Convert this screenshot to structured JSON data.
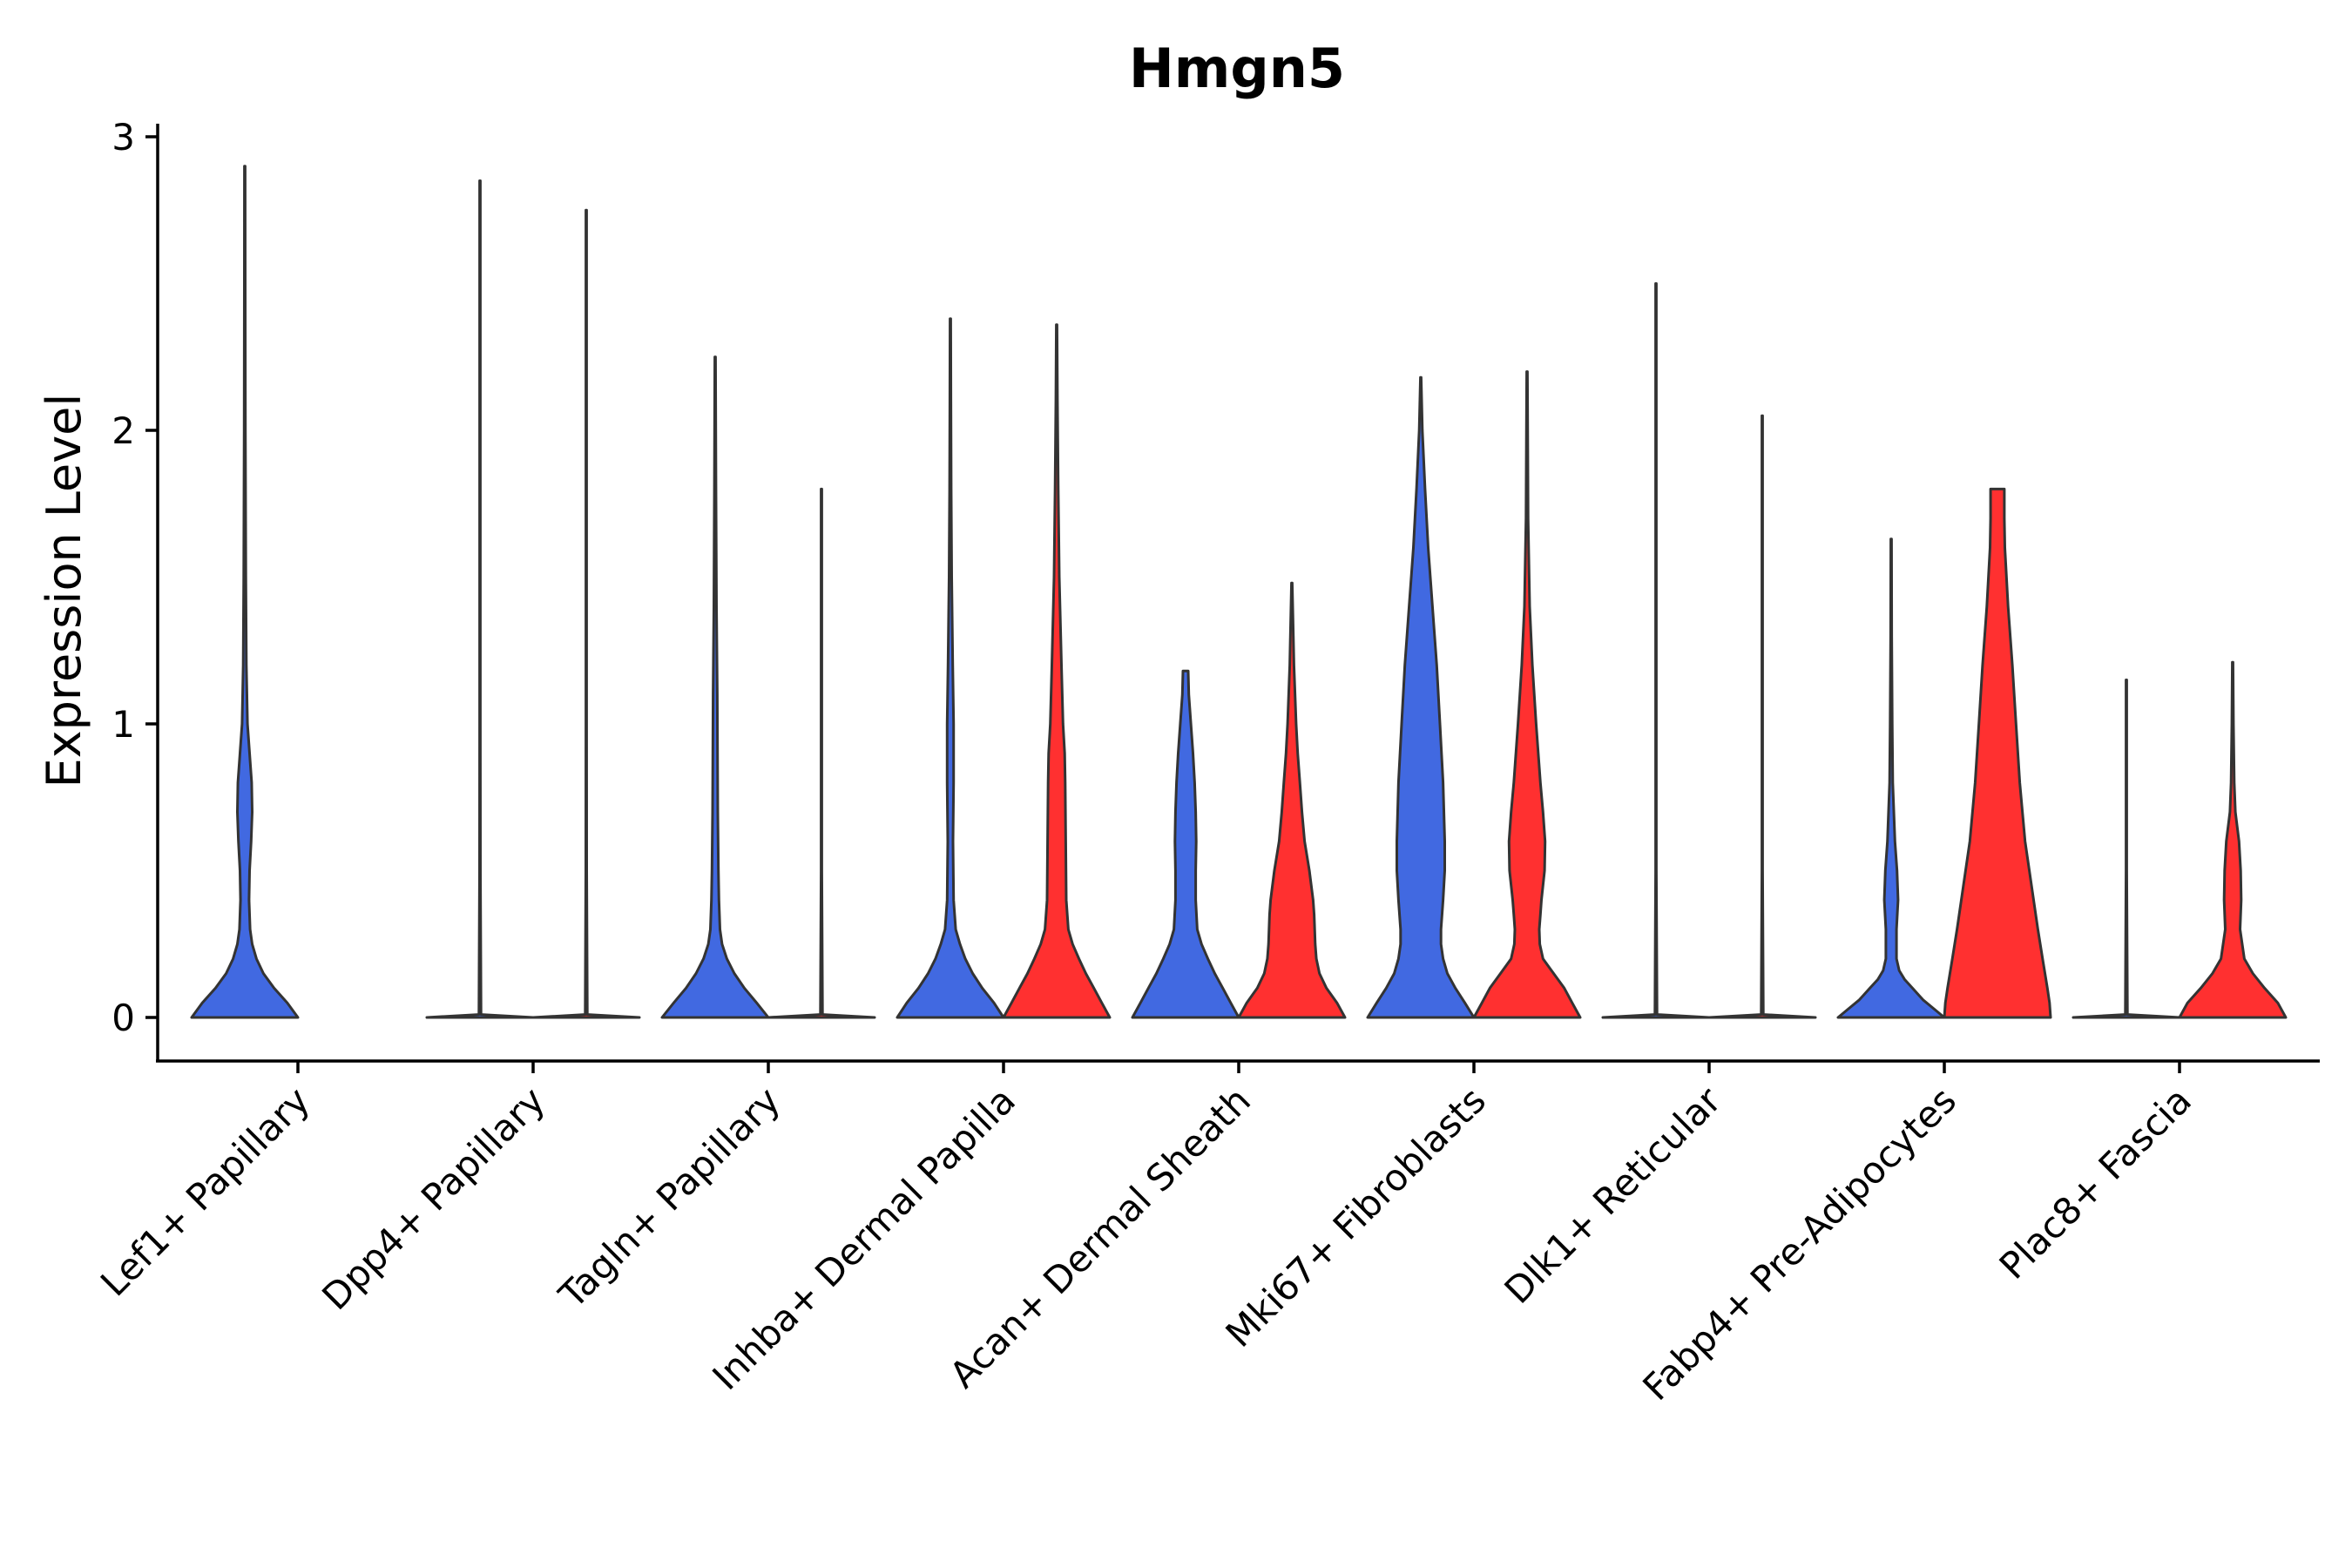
{
  "chart_data": {
    "type": "violin",
    "title": "Hmgn5",
    "xlabel": "",
    "ylabel": "Expression Level",
    "ylim": [
      -0.15,
      3.05
    ],
    "yticks": [
      "0",
      "1",
      "2",
      "3"
    ],
    "categories": [
      "Lef1+ Papillary",
      "Dpp4+ Papillary",
      "Tagln+ Papillary",
      "Inhba+ Dermal Papilla",
      "Acan+ Dermal Sheath",
      "Mki67+ Fibroblasts",
      "Dlk1+ Reticular",
      "Fabp4+ Pre-Adipocytes",
      "Plac8+ Fascia"
    ],
    "group_colors": [
      "#4169E1",
      "#FF3030"
    ],
    "violins": [
      {
        "category": 0,
        "group": 0,
        "max": 2.9,
        "profile": [
          [
            0,
            1.0
          ],
          [
            0.05,
            0.8
          ],
          [
            0.1,
            0.55
          ],
          [
            0.15,
            0.35
          ],
          [
            0.2,
            0.22
          ],
          [
            0.25,
            0.14
          ],
          [
            0.3,
            0.1
          ],
          [
            0.4,
            0.08
          ],
          [
            0.5,
            0.09
          ],
          [
            0.6,
            0.12
          ],
          [
            0.7,
            0.14
          ],
          [
            0.8,
            0.13
          ],
          [
            0.9,
            0.09
          ],
          [
            1.0,
            0.05
          ],
          [
            1.2,
            0.03
          ],
          [
            1.5,
            0.02
          ],
          [
            2.0,
            0.012
          ],
          [
            2.5,
            0.008
          ],
          [
            2.9,
            0.006
          ]
        ]
      },
      {
        "category": 1,
        "group": 0,
        "max": 2.85,
        "profile": [
          [
            0,
            1.0
          ],
          [
            0.01,
            0.02
          ],
          [
            0.5,
            0.008
          ],
          [
            1.0,
            0.007
          ],
          [
            2.0,
            0.006
          ],
          [
            2.85,
            0.006
          ]
        ]
      },
      {
        "category": 1,
        "group": 1,
        "max": 2.75,
        "profile": [
          [
            0,
            1.0
          ],
          [
            0.01,
            0.02
          ],
          [
            0.5,
            0.008
          ],
          [
            1.0,
            0.007
          ],
          [
            2.0,
            0.006
          ],
          [
            2.75,
            0.006
          ]
        ]
      },
      {
        "category": 2,
        "group": 0,
        "max": 2.25,
        "profile": [
          [
            0,
            1.0
          ],
          [
            0.05,
            0.78
          ],
          [
            0.1,
            0.55
          ],
          [
            0.15,
            0.36
          ],
          [
            0.2,
            0.22
          ],
          [
            0.25,
            0.13
          ],
          [
            0.3,
            0.09
          ],
          [
            0.4,
            0.07
          ],
          [
            0.5,
            0.06
          ],
          [
            0.7,
            0.05
          ],
          [
            0.9,
            0.045
          ],
          [
            1.1,
            0.04
          ],
          [
            1.4,
            0.025
          ],
          [
            1.8,
            0.015
          ],
          [
            2.25,
            0.006
          ]
        ]
      },
      {
        "category": 2,
        "group": 1,
        "max": 1.8,
        "profile": [
          [
            0,
            1.0
          ],
          [
            0.01,
            0.02
          ],
          [
            0.5,
            0.007
          ],
          [
            1.0,
            0.006
          ],
          [
            1.8,
            0.006
          ]
        ]
      },
      {
        "category": 3,
        "group": 0,
        "max": 2.38,
        "profile": [
          [
            0,
            1.0
          ],
          [
            0.05,
            0.82
          ],
          [
            0.1,
            0.6
          ],
          [
            0.15,
            0.42
          ],
          [
            0.2,
            0.28
          ],
          [
            0.25,
            0.18
          ],
          [
            0.3,
            0.1
          ],
          [
            0.4,
            0.06
          ],
          [
            0.6,
            0.05
          ],
          [
            0.8,
            0.06
          ],
          [
            1.0,
            0.06
          ],
          [
            1.2,
            0.045
          ],
          [
            1.5,
            0.025
          ],
          [
            1.8,
            0.015
          ],
          [
            2.1,
            0.01
          ],
          [
            2.38,
            0.006
          ]
        ]
      },
      {
        "category": 3,
        "group": 1,
        "max": 2.36,
        "profile": [
          [
            0,
            1.0
          ],
          [
            0.05,
            0.85
          ],
          [
            0.1,
            0.7
          ],
          [
            0.15,
            0.55
          ],
          [
            0.2,
            0.42
          ],
          [
            0.25,
            0.3
          ],
          [
            0.3,
            0.22
          ],
          [
            0.4,
            0.18
          ],
          [
            0.6,
            0.17
          ],
          [
            0.8,
            0.16
          ],
          [
            0.9,
            0.15
          ],
          [
            1.0,
            0.12
          ],
          [
            1.2,
            0.09
          ],
          [
            1.5,
            0.05
          ],
          [
            1.8,
            0.03
          ],
          [
            2.1,
            0.015
          ],
          [
            2.36,
            0.006
          ]
        ]
      },
      {
        "category": 4,
        "group": 0,
        "max": 1.18,
        "profile": [
          [
            0,
            1.0
          ],
          [
            0.05,
            0.85
          ],
          [
            0.1,
            0.7
          ],
          [
            0.15,
            0.55
          ],
          [
            0.2,
            0.42
          ],
          [
            0.25,
            0.3
          ],
          [
            0.3,
            0.22
          ],
          [
            0.4,
            0.19
          ],
          [
            0.5,
            0.19
          ],
          [
            0.6,
            0.2
          ],
          [
            0.7,
            0.19
          ],
          [
            0.8,
            0.17
          ],
          [
            0.9,
            0.14
          ],
          [
            1.0,
            0.1
          ],
          [
            1.1,
            0.06
          ],
          [
            1.18,
            0.05
          ]
        ]
      },
      {
        "category": 4,
        "group": 1,
        "max": 1.48,
        "profile": [
          [
            0,
            1.0
          ],
          [
            0.05,
            0.85
          ],
          [
            0.1,
            0.65
          ],
          [
            0.15,
            0.52
          ],
          [
            0.2,
            0.46
          ],
          [
            0.25,
            0.44
          ],
          [
            0.3,
            0.43
          ],
          [
            0.35,
            0.42
          ],
          [
            0.4,
            0.4
          ],
          [
            0.5,
            0.33
          ],
          [
            0.6,
            0.24
          ],
          [
            0.7,
            0.19
          ],
          [
            0.8,
            0.15
          ],
          [
            0.9,
            0.11
          ],
          [
            1.0,
            0.08
          ],
          [
            1.2,
            0.04
          ],
          [
            1.48,
            0.006
          ]
        ]
      },
      {
        "category": 5,
        "group": 0,
        "max": 2.18,
        "profile": [
          [
            0,
            1.0
          ],
          [
            0.05,
            0.83
          ],
          [
            0.1,
            0.65
          ],
          [
            0.15,
            0.5
          ],
          [
            0.2,
            0.42
          ],
          [
            0.25,
            0.38
          ],
          [
            0.3,
            0.38
          ],
          [
            0.4,
            0.42
          ],
          [
            0.5,
            0.45
          ],
          [
            0.6,
            0.45
          ],
          [
            0.8,
            0.42
          ],
          [
            1.0,
            0.36
          ],
          [
            1.2,
            0.3
          ],
          [
            1.4,
            0.22
          ],
          [
            1.6,
            0.14
          ],
          [
            1.8,
            0.08
          ],
          [
            2.0,
            0.03
          ],
          [
            2.18,
            0.006
          ]
        ]
      },
      {
        "category": 5,
        "group": 1,
        "max": 2.2,
        "profile": [
          [
            0,
            1.0
          ],
          [
            0.05,
            0.85
          ],
          [
            0.1,
            0.7
          ],
          [
            0.15,
            0.5
          ],
          [
            0.2,
            0.3
          ],
          [
            0.25,
            0.24
          ],
          [
            0.3,
            0.23
          ],
          [
            0.35,
            0.25
          ],
          [
            0.4,
            0.27
          ],
          [
            0.5,
            0.33
          ],
          [
            0.6,
            0.34
          ],
          [
            0.7,
            0.3
          ],
          [
            0.8,
            0.25
          ],
          [
            1.0,
            0.17
          ],
          [
            1.2,
            0.1
          ],
          [
            1.4,
            0.05
          ],
          [
            1.7,
            0.02
          ],
          [
            2.2,
            0.006
          ]
        ]
      },
      {
        "category": 6,
        "group": 0,
        "max": 2.5,
        "profile": [
          [
            0,
            1.0
          ],
          [
            0.01,
            0.02
          ],
          [
            0.5,
            0.007
          ],
          [
            1.0,
            0.006
          ],
          [
            2.5,
            0.006
          ]
        ]
      },
      {
        "category": 6,
        "group": 1,
        "max": 2.05,
        "profile": [
          [
            0,
            1.0
          ],
          [
            0.01,
            0.02
          ],
          [
            0.5,
            0.007
          ],
          [
            1.0,
            0.006
          ],
          [
            2.05,
            0.006
          ]
        ]
      },
      {
        "category": 7,
        "group": 0,
        "max": 1.63,
        "profile": [
          [
            0,
            1.0
          ],
          [
            0.03,
            0.8
          ],
          [
            0.06,
            0.6
          ],
          [
            0.1,
            0.4
          ],
          [
            0.13,
            0.25
          ],
          [
            0.16,
            0.15
          ],
          [
            0.2,
            0.1
          ],
          [
            0.3,
            0.1
          ],
          [
            0.4,
            0.13
          ],
          [
            0.5,
            0.11
          ],
          [
            0.6,
            0.07
          ],
          [
            0.8,
            0.03
          ],
          [
            1.0,
            0.02
          ],
          [
            1.3,
            0.01
          ],
          [
            1.63,
            0.006
          ]
        ]
      },
      {
        "category": 7,
        "group": 1,
        "max": 1.8,
        "profile": [
          [
            0,
            1.0
          ],
          [
            0.05,
            0.98
          ],
          [
            0.1,
            0.94
          ],
          [
            0.2,
            0.85
          ],
          [
            0.3,
            0.76
          ],
          [
            0.4,
            0.68
          ],
          [
            0.5,
            0.6
          ],
          [
            0.6,
            0.52
          ],
          [
            0.8,
            0.42
          ],
          [
            1.0,
            0.35
          ],
          [
            1.2,
            0.28
          ],
          [
            1.4,
            0.2
          ],
          [
            1.6,
            0.14
          ],
          [
            1.7,
            0.13
          ],
          [
            1.8,
            0.13
          ]
        ]
      },
      {
        "category": 8,
        "group": 0,
        "max": 1.15,
        "profile": [
          [
            0,
            1.0
          ],
          [
            0.01,
            0.02
          ],
          [
            0.5,
            0.007
          ],
          [
            1.0,
            0.006
          ],
          [
            1.15,
            0.006
          ]
        ]
      },
      {
        "category": 8,
        "group": 1,
        "max": 1.21,
        "profile": [
          [
            0,
            1.0
          ],
          [
            0.05,
            0.85
          ],
          [
            0.1,
            0.6
          ],
          [
            0.15,
            0.38
          ],
          [
            0.2,
            0.22
          ],
          [
            0.3,
            0.14
          ],
          [
            0.4,
            0.16
          ],
          [
            0.5,
            0.15
          ],
          [
            0.6,
            0.12
          ],
          [
            0.7,
            0.05
          ],
          [
            0.8,
            0.03
          ],
          [
            1.0,
            0.015
          ],
          [
            1.21,
            0.006
          ]
        ]
      }
    ]
  }
}
